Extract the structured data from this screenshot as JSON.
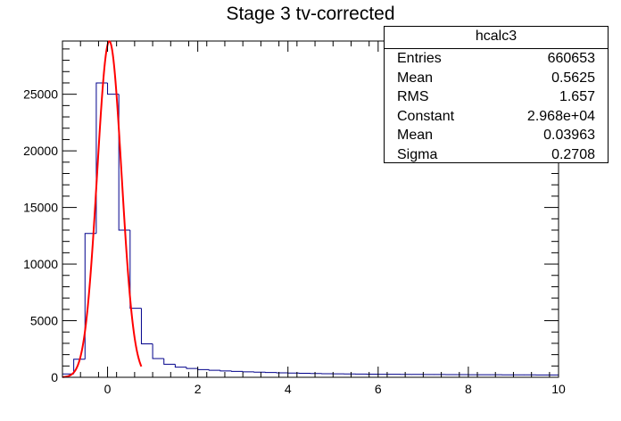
{
  "title": "Stage 3 tv-corrected",
  "stats": {
    "name": "hcalc3",
    "rows": [
      {
        "label": "Entries",
        "value": "660653"
      },
      {
        "label": "Mean",
        "value": "0.5625"
      },
      {
        "label": "RMS",
        "value": "1.657"
      },
      {
        "label": "Constant",
        "value": "2.968e+04"
      },
      {
        "label": "Mean",
        "value": "0.03963"
      },
      {
        "label": "Sigma",
        "value": "0.2708"
      }
    ]
  },
  "colors": {
    "histogram": "#00008b",
    "fit": "#ff0000",
    "axis": "#000000"
  },
  "chart_data": {
    "type": "bar",
    "style": "step-histogram",
    "xlim": [
      -1,
      10
    ],
    "ylim": [
      0,
      29700
    ],
    "xticks": [
      0,
      2,
      4,
      6,
      8,
      10
    ],
    "xtick_labels": [
      "0",
      "2",
      "4",
      "6",
      "8",
      "10"
    ],
    "yticks": [
      0,
      5000,
      10000,
      15000,
      20000,
      25000
    ],
    "ytick_labels": [
      "0",
      "5000",
      "10000",
      "15000",
      "20000",
      "25000"
    ],
    "bin_width": 0.25,
    "bin_start": -1,
    "values": [
      300,
      1600,
      12700,
      26000,
      25000,
      13000,
      6100,
      2950,
      1650,
      1150,
      900,
      780,
      680,
      620,
      560,
      520,
      480,
      450,
      420,
      390,
      370,
      350,
      330,
      320,
      310,
      300,
      290,
      280,
      270,
      265,
      260,
      255,
      250,
      245,
      240,
      235,
      230,
      225,
      222,
      220,
      215,
      212,
      210,
      208
    ],
    "fit": {
      "function": "gaus",
      "constant": 29680,
      "mean": 0.03963,
      "sigma": 0.2708,
      "range": [
        -1,
        0.75
      ]
    },
    "grid": false,
    "legend": "top-right"
  }
}
